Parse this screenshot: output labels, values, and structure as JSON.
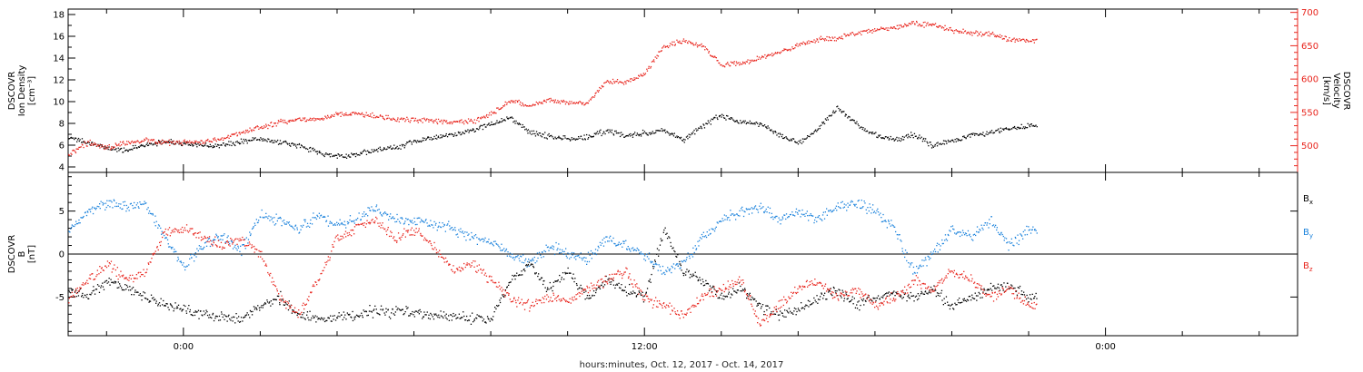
{
  "figure": {
    "xlabel": "hours:minutes, Oct. 12, 2017 - Oct. 14, 2017",
    "time_ticks": [
      "0:00",
      "12:00",
      "0:00"
    ]
  },
  "chart_data": [
    {
      "type": "scatter",
      "panel": "density-velocity",
      "ylabel_left": [
        "DSCOVR",
        "Ion Density",
        "[cm⁻³]"
      ],
      "ylabel_right": [
        "DSCOVR",
        "Velocity",
        "[km/s]"
      ],
      "x_unit": "hours since Oct. 12, 2017 0:00",
      "xlim": [
        -3.0,
        29.0
      ],
      "data_end": 22.2,
      "ylim_left": [
        3.5,
        18.5
      ],
      "yticks_left": [
        4,
        6,
        8,
        10,
        12,
        14,
        16,
        18
      ],
      "ylim_right": [
        460,
        705
      ],
      "yticks_right": [
        500,
        550,
        600,
        650,
        700
      ],
      "series": [
        {
          "axis": "left",
          "color": "#000000",
          "x": [
            -3.0,
            -2.5,
            -2.0,
            -1.5,
            -1.0,
            -0.5,
            0.0,
            0.5,
            1.0,
            1.5,
            2.0,
            2.5,
            3.0,
            3.5,
            4.0,
            4.5,
            5.0,
            5.5,
            6.0,
            6.5,
            7.0,
            7.5,
            8.0,
            8.5,
            9.0,
            9.5,
            10.0,
            10.5,
            11.0,
            11.5,
            12.0,
            12.5,
            13.0,
            13.5,
            14.0,
            14.5,
            15.0,
            15.5,
            16.0,
            16.5,
            17.0,
            17.5,
            18.0,
            18.5,
            19.0,
            19.5,
            20.0,
            20.5,
            21.0,
            21.5,
            22.0
          ],
          "values": [
            6.8,
            6.3,
            5.8,
            5.6,
            6.0,
            6.4,
            6.2,
            6.0,
            6.1,
            6.4,
            6.6,
            6.3,
            6.0,
            5.4,
            5.0,
            5.2,
            5.6,
            5.8,
            6.4,
            6.8,
            7.0,
            7.4,
            8.0,
            8.6,
            7.2,
            6.9,
            6.6,
            6.8,
            7.4,
            6.9,
            7.2,
            7.5,
            6.5,
            7.8,
            8.8,
            8.2,
            8.0,
            7.0,
            6.2,
            7.5,
            9.5,
            8.0,
            7.0,
            6.5,
            7.0,
            6.0,
            6.5,
            6.9,
            7.2,
            7.6,
            7.8
          ]
        },
        {
          "axis": "right",
          "color": "#e8241c",
          "x": [
            -3.0,
            -2.5,
            -2.0,
            -1.5,
            -1.0,
            -0.5,
            0.0,
            0.5,
            1.0,
            1.5,
            2.0,
            2.5,
            3.0,
            3.5,
            4.0,
            4.5,
            5.0,
            5.5,
            6.0,
            6.5,
            7.0,
            7.5,
            8.0,
            8.5,
            9.0,
            9.5,
            10.0,
            10.5,
            11.0,
            11.5,
            12.0,
            12.5,
            13.0,
            13.5,
            14.0,
            14.5,
            15.0,
            15.5,
            16.0,
            16.5,
            17.0,
            17.5,
            18.0,
            18.5,
            19.0,
            19.5,
            20.0,
            20.5,
            21.0,
            21.5,
            22.0
          ],
          "values": [
            488,
            505,
            498,
            505,
            510,
            505,
            506,
            507,
            512,
            520,
            528,
            536,
            540,
            540,
            548,
            548,
            545,
            541,
            540,
            538,
            536,
            537,
            548,
            568,
            560,
            570,
            564,
            565,
            598,
            596,
            608,
            650,
            658,
            650,
            622,
            624,
            632,
            640,
            652,
            660,
            662,
            670,
            674,
            678,
            684,
            682,
            674,
            670,
            668,
            660,
            658
          ]
        }
      ]
    },
    {
      "type": "scatter",
      "panel": "magnetic-field",
      "ylabel": [
        "DSCOVR",
        "B",
        "[nT]"
      ],
      "x_unit": "hours since Oct. 12, 2017 0:00",
      "xlim": [
        -3.0,
        29.0
      ],
      "data_end": 22.2,
      "ylim": [
        -9.5,
        9.5
      ],
      "yticks": [
        -5,
        0,
        5
      ],
      "zero_line": true,
      "legend": [
        {
          "text": "B",
          "sub": "x",
          "color": "#000000"
        },
        {
          "text": "B",
          "sub": "y",
          "color": "#1a82dc"
        },
        {
          "text": "B",
          "sub": "z",
          "color": "#e8241c"
        }
      ],
      "series": [
        {
          "name": "Bx",
          "color": "#000000",
          "x": [
            -3.0,
            -2.5,
            -2.0,
            -1.5,
            -1.0,
            -0.5,
            0.0,
            0.5,
            1.0,
            1.5,
            2.0,
            2.5,
            3.0,
            3.5,
            4.0,
            4.5,
            5.0,
            5.5,
            6.0,
            6.5,
            7.0,
            7.5,
            8.0,
            8.5,
            9.0,
            9.5,
            10.0,
            10.5,
            11.0,
            11.5,
            12.0,
            12.5,
            13.0,
            13.5,
            14.0,
            14.5,
            15.0,
            15.5,
            16.0,
            16.5,
            17.0,
            17.5,
            18.0,
            18.5,
            19.0,
            19.5,
            20.0,
            20.5,
            21.0,
            21.5,
            22.0
          ],
          "values": [
            -4,
            -5,
            -3,
            -4,
            -5,
            -6,
            -6.5,
            -7,
            -7.2,
            -7.5,
            -6,
            -5,
            -7,
            -7.6,
            -7.4,
            -7.0,
            -6.5,
            -6.6,
            -6.8,
            -7.0,
            -7.2,
            -7.4,
            -7.6,
            -3.0,
            -1.0,
            -4.0,
            -2.0,
            -5.0,
            -3.0,
            -4.0,
            -5.0,
            3.0,
            -2.0,
            -3.0,
            -5.0,
            -4.0,
            -6.0,
            -7.0,
            -6.5,
            -5.0,
            -4.0,
            -6.0,
            -5.0,
            -4.5,
            -5.0,
            -4.0,
            -6.0,
            -5.0,
            -4.0,
            -3.5,
            -5.0
          ]
        },
        {
          "name": "By",
          "color": "#1a82dc",
          "x": [
            -3.0,
            -2.5,
            -2.0,
            -1.5,
            -1.0,
            -0.5,
            0.0,
            0.5,
            1.0,
            1.5,
            2.0,
            2.5,
            3.0,
            3.5,
            4.0,
            4.5,
            5.0,
            5.5,
            6.0,
            6.5,
            7.0,
            7.5,
            8.0,
            8.5,
            9.0,
            9.5,
            10.0,
            10.5,
            11.0,
            11.5,
            12.0,
            12.5,
            13.0,
            13.5,
            14.0,
            14.5,
            15.0,
            15.5,
            16.0,
            16.5,
            17.0,
            17.5,
            18.0,
            18.5,
            19.0,
            19.5,
            20.0,
            20.5,
            21.0,
            21.5,
            22.0
          ],
          "values": [
            3.0,
            5.0,
            6.0,
            5.5,
            6.0,
            2.0,
            -1.5,
            1.0,
            2.0,
            0.5,
            4.5,
            4.0,
            3.0,
            4.5,
            3.5,
            4.0,
            5.5,
            4.0,
            4.0,
            3.5,
            3.0,
            2.0,
            1.5,
            0.0,
            -1.0,
            1.0,
            0.0,
            -0.5,
            2.0,
            1.0,
            0.0,
            -2.0,
            -1.0,
            2.0,
            4.0,
            5.0,
            5.5,
            4.0,
            5.0,
            4.0,
            5.5,
            6.0,
            5.0,
            3.0,
            -2.0,
            0.0,
            3.0,
            2.0,
            4.0,
            1.0,
            3.0
          ]
        },
        {
          "name": "Bz",
          "color": "#e8241c",
          "x": [
            -3.0,
            -2.5,
            -2.0,
            -1.5,
            -1.0,
            -0.5,
            0.0,
            0.5,
            1.0,
            1.5,
            2.0,
            2.5,
            3.0,
            3.5,
            4.0,
            4.5,
            5.0,
            5.5,
            6.0,
            6.5,
            7.0,
            7.5,
            8.0,
            8.5,
            9.0,
            9.5,
            10.0,
            10.5,
            11.0,
            11.5,
            12.0,
            12.5,
            13.0,
            13.5,
            14.0,
            14.5,
            15.0,
            15.5,
            16.0,
            16.5,
            17.0,
            17.5,
            18.0,
            18.5,
            19.0,
            19.5,
            20.0,
            20.5,
            21.0,
            21.5,
            22.0
          ],
          "values": [
            -5.0,
            -3.0,
            -1.0,
            -3.0,
            -2.0,
            2.5,
            3.0,
            2.0,
            1.0,
            2.0,
            0.0,
            -5.0,
            -7.0,
            -3.0,
            2.0,
            3.0,
            4.0,
            2.0,
            3.0,
            1.0,
            -2.0,
            -1.0,
            -3.0,
            -5.0,
            -6.0,
            -5.0,
            -5.5,
            -4.0,
            -3.0,
            -2.0,
            -5.0,
            -6.0,
            -7.0,
            -5.0,
            -4.0,
            -3.0,
            -8.0,
            -6.0,
            -4.0,
            -3.0,
            -5.0,
            -4.0,
            -6.0,
            -5.0,
            -3.0,
            -4.0,
            -2.0,
            -3.0,
            -5.0,
            -4.0,
            -6.0
          ]
        }
      ]
    }
  ]
}
